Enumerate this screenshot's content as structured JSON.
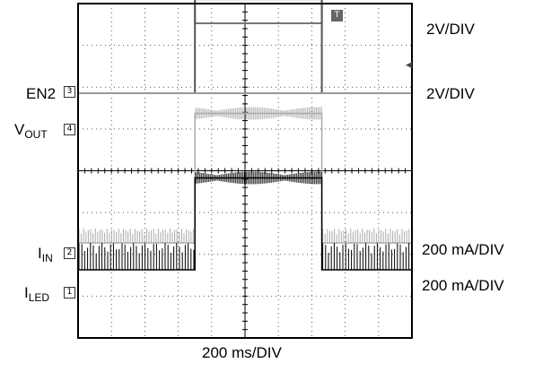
{
  "channels": [
    {
      "id": "en2",
      "name": "EN2",
      "sub": "",
      "marker": "3",
      "scale": "2V/DIV"
    },
    {
      "id": "vout",
      "name": "V",
      "sub": "OUT",
      "marker": "4",
      "scale": ""
    },
    {
      "id": "iin",
      "name": "I",
      "sub": "IN",
      "marker": "2",
      "scale": "200 mA/DIV"
    },
    {
      "id": "iled",
      "name": "I",
      "sub": "LED",
      "marker": "1",
      "scale": "200 mA/DIV"
    }
  ],
  "top_scale": "2V/DIV",
  "trigger_marker": "T",
  "timebase": "200 ms/DIV",
  "chart_data": {
    "type": "line",
    "grid": true,
    "x_divisions": 10,
    "y_divisions": 8,
    "x_unit": "ms",
    "ms_per_div": 200,
    "series": [
      {
        "id": "ch-top",
        "values_x": [
          0,
          700,
          700,
          1460,
          1460,
          2000
        ],
        "values_level_div": [
          0.75,
          0.75,
          0.15,
          0.15,
          0.75,
          0.75
        ],
        "color": "#777777"
      },
      {
        "id": "en2",
        "values_x": [
          0,
          700,
          700,
          1460,
          1460,
          2000
        ],
        "values_level_div": [
          0,
          0,
          2.25,
          2.25,
          0,
          0
        ],
        "color": "#555555"
      },
      {
        "id": "vout",
        "values_x": [
          0,
          2000
        ],
        "values_level_div": [
          0,
          0
        ],
        "color": "#999999"
      },
      {
        "id": "iin",
        "values_x": [
          0,
          700,
          700,
          1460,
          1460,
          2000
        ],
        "values_level_div": [
          0.3,
          0.3,
          3.4,
          3.4,
          0.3,
          0.3
        ],
        "color": "#aaaaaa",
        "pwm": true
      },
      {
        "id": "iled",
        "values_x": [
          0,
          700,
          700,
          1460,
          1460,
          2000
        ],
        "values_level_div": [
          0.6,
          0.6,
          2.8,
          2.8,
          0.6,
          0.6
        ],
        "color": "#000000",
        "pwm": true
      }
    ]
  }
}
